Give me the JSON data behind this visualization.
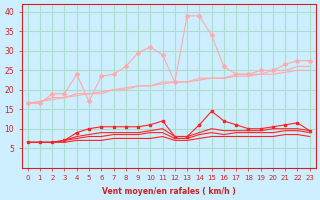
{
  "title": "",
  "xlabel": "Vent moyen/en rafales ( km/h )",
  "ylabel": "",
  "background_color": "#cceeff",
  "grid_color": "#aaddcc",
  "x": [
    0,
    1,
    2,
    3,
    4,
    5,
    6,
    7,
    8,
    9,
    10,
    11,
    12,
    13,
    14,
    15,
    16,
    17,
    18,
    19,
    20,
    21,
    22,
    23
  ],
  "line1": [
    16.5,
    16.5,
    19,
    19,
    24,
    17,
    23.5,
    24,
    26,
    29.5,
    31,
    29,
    22,
    39,
    39,
    34,
    26,
    24,
    24,
    25,
    25,
    26.5,
    27.5,
    27.5
  ],
  "line2": [
    16.5,
    17,
    18,
    18,
    19,
    19,
    19,
    20,
    20,
    21,
    21,
    22,
    22,
    22,
    23,
    23,
    23,
    24,
    24,
    24,
    25,
    25,
    26,
    26
  ],
  "line3": [
    16.5,
    17,
    17.5,
    18,
    18.5,
    19,
    19.5,
    20,
    20.5,
    21,
    21,
    21.5,
    22,
    22,
    22.5,
    23,
    23,
    23.5,
    23.5,
    24,
    24,
    24.5,
    25,
    25
  ],
  "line4": [
    6.5,
    6.5,
    6.5,
    7,
    9,
    10,
    10.5,
    10.5,
    10.5,
    10.5,
    11,
    12,
    8,
    8,
    11,
    14.5,
    12,
    11,
    10,
    10,
    10.5,
    11,
    11.5,
    9.5
  ],
  "line5": [
    6.5,
    6.5,
    6.5,
    7,
    8,
    8.5,
    9,
    9,
    9,
    9,
    9.5,
    10,
    8,
    8,
    9,
    10,
    9.5,
    9.5,
    9.5,
    9.5,
    10,
    10,
    10,
    9.5
  ],
  "line6": [
    6.5,
    6.5,
    6.5,
    7,
    7.5,
    8,
    8,
    8.5,
    8.5,
    8.5,
    9,
    9,
    7.5,
    7.5,
    8.5,
    9,
    8.5,
    9,
    9,
    9,
    9,
    9.5,
    9.5,
    9
  ],
  "line7": [
    6.5,
    6.5,
    6.5,
    6.5,
    7,
    7,
    7,
    7.5,
    7.5,
    7.5,
    7.5,
    8,
    7,
    7,
    7.5,
    8,
    8,
    8,
    8,
    8,
    8,
    8.5,
    8.5,
    8
  ],
  "color_light": "#ffaaaa",
  "color_dark": "#ff2222",
  "tick_color": "#cc2222",
  "label_color": "#cc2222",
  "ylim": [
    0,
    42
  ],
  "xlim": [
    -0.5,
    23.5
  ],
  "yticks": [
    5,
    10,
    15,
    20,
    25,
    30,
    35,
    40
  ],
  "ytick_labels": [
    "5",
    "10",
    "15",
    "20",
    "25",
    "30",
    "35",
    "40"
  ]
}
